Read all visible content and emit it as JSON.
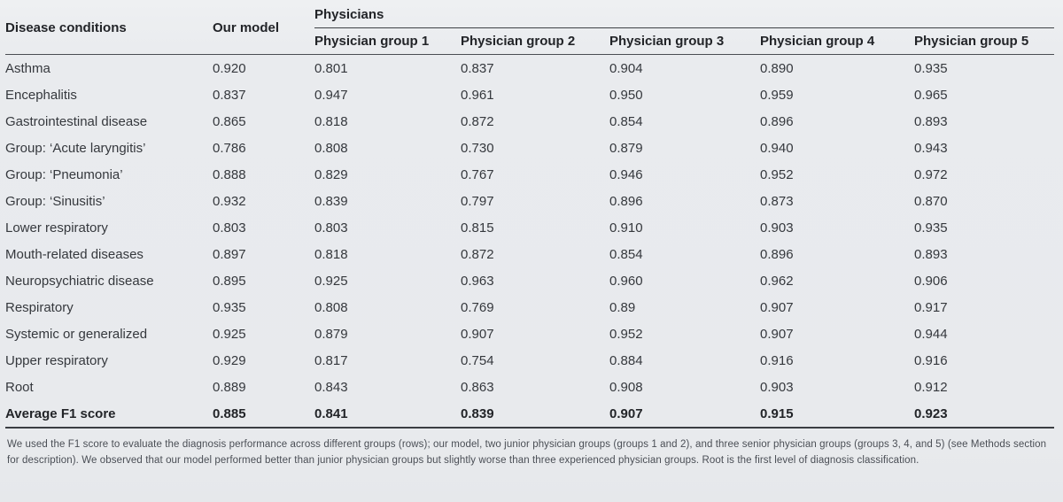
{
  "table": {
    "columns": {
      "disease": "Disease conditions",
      "our_model": "Our model",
      "physicians_span": "Physicians",
      "physician_groups": [
        "Physician group 1",
        "Physician group 2",
        "Physician group 3",
        "Physician group 4",
        "Physician group 5"
      ]
    },
    "rows": [
      {
        "label": "Asthma",
        "values": [
          "0.920",
          "0.801",
          "0.837",
          "0.904",
          "0.890",
          "0.935"
        ]
      },
      {
        "label": "Encephalitis",
        "values": [
          "0.837",
          "0.947",
          "0.961",
          "0.950",
          "0.959",
          "0.965"
        ]
      },
      {
        "label": "Gastrointestinal disease",
        "values": [
          "0.865",
          "0.818",
          "0.872",
          "0.854",
          "0.896",
          "0.893"
        ]
      },
      {
        "label": "Group: ‘Acute laryngitis’",
        "values": [
          "0.786",
          "0.808",
          "0.730",
          "0.879",
          "0.940",
          "0.943"
        ]
      },
      {
        "label": "Group: ‘Pneumonia’",
        "values": [
          "0.888",
          "0.829",
          "0.767",
          "0.946",
          "0.952",
          "0.972"
        ]
      },
      {
        "label": "Group: ‘Sinusitis’",
        "values": [
          "0.932",
          "0.839",
          "0.797",
          "0.896",
          "0.873",
          "0.870"
        ]
      },
      {
        "label": "Lower respiratory",
        "values": [
          "0.803",
          "0.803",
          "0.815",
          "0.910",
          "0.903",
          "0.935"
        ]
      },
      {
        "label": "Mouth-related diseases",
        "values": [
          "0.897",
          "0.818",
          "0.872",
          "0.854",
          "0.896",
          "0.893"
        ]
      },
      {
        "label": "Neuropsychiatric disease",
        "values": [
          "0.895",
          "0.925",
          "0.963",
          "0.960",
          "0.962",
          "0.906"
        ]
      },
      {
        "label": "Respiratory",
        "values": [
          "0.935",
          "0.808",
          "0.769",
          "0.89",
          "0.907",
          "0.917"
        ]
      },
      {
        "label": "Systemic or generalized",
        "values": [
          "0.925",
          "0.879",
          "0.907",
          "0.952",
          "0.907",
          "0.944"
        ]
      },
      {
        "label": "Upper respiratory",
        "values": [
          "0.929",
          "0.817",
          "0.754",
          "0.884",
          "0.916",
          "0.916"
        ]
      },
      {
        "label": "Root",
        "values": [
          "0.889",
          "0.843",
          "0.863",
          "0.908",
          "0.903",
          "0.912"
        ]
      }
    ],
    "footer_row": {
      "label": "Average F1 score",
      "values": [
        "0.885",
        "0.841",
        "0.839",
        "0.907",
        "0.915",
        "0.923"
      ]
    }
  },
  "footnote": "We used the F1 score to evaluate the diagnosis performance across different groups (rows); our model, two junior physician groups (groups 1 and 2), and three senior physician groups (groups 3, 4, and 5) (see Methods section for description). We observed that our model performed better than junior physician groups but slightly worse than three experienced physician groups. Root is the first level of diagnosis classification."
}
